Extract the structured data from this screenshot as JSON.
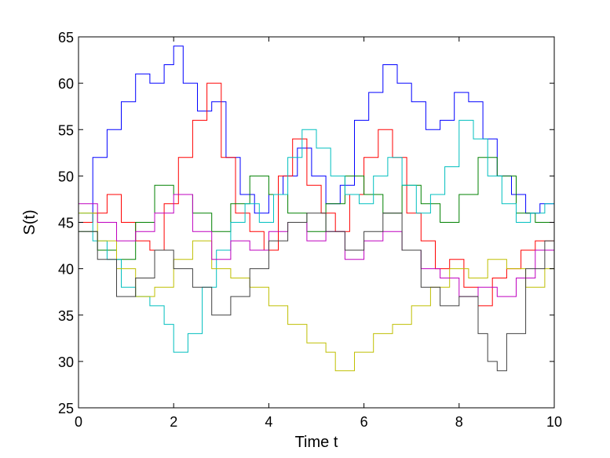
{
  "chart_data": {
    "type": "line",
    "title": "",
    "xlabel": "Time t",
    "ylabel": "S(t)",
    "xlim": [
      0,
      10
    ],
    "ylim": [
      25,
      65
    ],
    "x_ticks": [
      0,
      2,
      4,
      6,
      8,
      10
    ],
    "y_ticks": [
      25,
      30,
      35,
      40,
      45,
      50,
      55,
      60,
      65
    ],
    "grid": false,
    "legend": "none",
    "series": [
      {
        "color": "#0000ff",
        "x": [
          0,
          0.3,
          0.6,
          0.9,
          1.2,
          1.5,
          1.8,
          2.0,
          2.2,
          2.5,
          2.8,
          3.1,
          3.4,
          3.7,
          4.0,
          4.3,
          4.6,
          4.9,
          5.2,
          5.5,
          5.8,
          6.1,
          6.4,
          6.7,
          7.0,
          7.3,
          7.6,
          7.9,
          8.2,
          8.5,
          8.8,
          9.1,
          9.4,
          9.7,
          10
        ],
        "y": [
          45,
          52,
          55,
          58,
          61,
          60,
          62,
          64,
          60,
          57,
          58,
          52,
          48,
          46,
          48,
          50,
          53,
          50,
          47,
          49,
          56,
          59,
          62,
          60,
          58,
          55,
          56,
          59,
          58,
          54,
          50,
          48,
          46,
          47,
          46
        ]
      },
      {
        "color": "#ff0000",
        "x": [
          0,
          0.3,
          0.6,
          0.9,
          1.2,
          1.5,
          1.8,
          2.1,
          2.4,
          2.7,
          3.0,
          3.3,
          3.6,
          3.9,
          4.2,
          4.5,
          4.8,
          5.1,
          5.4,
          5.7,
          6.0,
          6.3,
          6.6,
          6.9,
          7.2,
          7.5,
          7.8,
          8.1,
          8.4,
          8.7,
          9.0,
          9.3,
          9.6,
          10
        ],
        "y": [
          45,
          46,
          48,
          45,
          43,
          42,
          47,
          52,
          56,
          60,
          52,
          46,
          44,
          42,
          50,
          54,
          49,
          46,
          44,
          48,
          52,
          55,
          52,
          46,
          43,
          40,
          41,
          38,
          36,
          39,
          40,
          42,
          43,
          44
        ]
      },
      {
        "color": "#008000",
        "x": [
          0,
          0.4,
          0.8,
          1.2,
          1.6,
          2.0,
          2.4,
          2.8,
          3.2,
          3.6,
          4.0,
          4.4,
          4.8,
          5.2,
          5.6,
          6.0,
          6.4,
          6.8,
          7.2,
          7.6,
          8.0,
          8.4,
          8.8,
          9.2,
          9.6,
          10
        ],
        "y": [
          44,
          42,
          41,
          45,
          49,
          48,
          46,
          44,
          47,
          50,
          48,
          46,
          44,
          47,
          50,
          48,
          46,
          49,
          47,
          45,
          48,
          52,
          50,
          46,
          45,
          48
        ]
      },
      {
        "color": "#00bfbf",
        "x": [
          0,
          0.3,
          0.6,
          0.9,
          1.2,
          1.5,
          1.8,
          2.0,
          2.3,
          2.6,
          2.9,
          3.2,
          3.5,
          3.8,
          4.1,
          4.4,
          4.7,
          5.0,
          5.3,
          5.6,
          5.9,
          6.2,
          6.5,
          6.8,
          7.1,
          7.4,
          7.7,
          8.0,
          8.3,
          8.6,
          8.9,
          9.2,
          9.5,
          9.8,
          10
        ],
        "y": [
          46,
          43,
          41,
          38,
          37,
          36,
          34,
          31,
          33,
          38,
          42,
          45,
          47,
          45,
          48,
          52,
          55,
          53,
          50,
          48,
          47,
          50,
          52,
          49,
          46,
          48,
          51,
          56,
          54,
          50,
          47,
          45,
          46,
          47,
          45
        ]
      },
      {
        "color": "#bfbf00",
        "x": [
          0,
          0.4,
          0.8,
          1.2,
          1.6,
          2.0,
          2.4,
          2.8,
          3.2,
          3.6,
          4.0,
          4.4,
          4.8,
          5.2,
          5.4,
          5.8,
          6.2,
          6.6,
          7.0,
          7.4,
          7.8,
          8.2,
          8.6,
          9.0,
          9.4,
          9.8,
          10
        ],
        "y": [
          46,
          43,
          40,
          37,
          38,
          41,
          43,
          40,
          39,
          38,
          36,
          34,
          32,
          31,
          29,
          31,
          33,
          34,
          36,
          38,
          40,
          39,
          41,
          40,
          38,
          40,
          42
        ]
      },
      {
        "color": "#bf00bf",
        "x": [
          0,
          0.4,
          0.8,
          1.2,
          1.6,
          2.0,
          2.4,
          2.8,
          3.2,
          3.6,
          4.0,
          4.4,
          4.8,
          5.2,
          5.6,
          6.0,
          6.4,
          6.8,
          7.2,
          7.6,
          8.0,
          8.4,
          8.8,
          9.2,
          9.6,
          10
        ],
        "y": [
          47,
          45,
          43,
          44,
          46,
          48,
          44,
          41,
          43,
          42,
          44,
          45,
          43,
          44,
          41,
          43,
          44,
          42,
          40,
          39,
          37,
          38,
          37,
          39,
          42,
          45
        ]
      },
      {
        "color": "#404040",
        "x": [
          0,
          0.4,
          0.8,
          1.2,
          1.6,
          2.0,
          2.4,
          2.8,
          3.2,
          3.6,
          4.0,
          4.4,
          4.8,
          5.2,
          5.6,
          6.0,
          6.4,
          6.8,
          7.2,
          7.6,
          8.0,
          8.4,
          8.6,
          8.8,
          9.0,
          9.4,
          9.8,
          10
        ],
        "y": [
          44,
          41,
          37,
          39,
          42,
          40,
          38,
          35,
          37,
          40,
          43,
          45,
          46,
          44,
          42,
          44,
          46,
          42,
          38,
          36,
          37,
          33,
          30,
          29,
          33,
          40,
          43,
          45
        ]
      }
    ]
  }
}
